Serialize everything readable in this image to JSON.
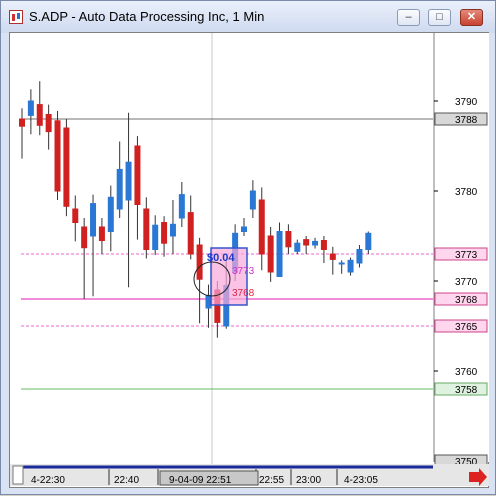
{
  "window": {
    "title": "S.ADP - Auto Data Processing Inc, 1 Min",
    "buttons": [
      "minimize-icon",
      "maximize-icon",
      "close-icon"
    ]
  },
  "colors": {
    "up_candle": "#2a78d4",
    "down_candle": "#d02020",
    "pink_line": "#ee66cc",
    "grey_line": "#707070",
    "green_line": "#66bb66",
    "price_label_bg": "#ffd6ee",
    "price_label_border": "#cc4488"
  },
  "overlay": {
    "profit_text": "$0.04",
    "entry_price": "3773",
    "target_price": "3768"
  },
  "x_axis": {
    "labels": [
      "4-22:30",
      "22:40",
      "9-04-09 22:51",
      "22:55",
      "23:00",
      "4-23:05"
    ]
  },
  "chart_data": {
    "type": "candlestick",
    "title": "S.ADP - Auto Data Processing Inc, 1 Min",
    "y_tick_labels": [
      "3790",
      "3780",
      "3770",
      "3760"
    ],
    "y_range": [
      3758,
      3794
    ],
    "price_labels": [
      {
        "value": "3788",
        "style": "grey"
      },
      {
        "value": "3773",
        "style": "pink"
      },
      {
        "value": "3768",
        "style": "pink"
      },
      {
        "value": "3765",
        "style": "pink"
      },
      {
        "value": "3758",
        "style": "green"
      },
      {
        "value": "3750",
        "style": "grey"
      }
    ],
    "horizontal_lines": [
      {
        "value": 3788,
        "style": "grey"
      },
      {
        "value": 3773,
        "style": "pink-dashed"
      },
      {
        "value": 3768,
        "style": "pink"
      },
      {
        "value": 3765,
        "style": "pink-dashed"
      },
      {
        "value": 3758,
        "style": "green"
      }
    ],
    "candles": [
      {
        "open": 3788.0,
        "close": 3787.2,
        "high": 3789.2,
        "low": 3783.6
      },
      {
        "open": 3788.4,
        "close": 3790.0,
        "high": 3791.3,
        "low": 3786.3
      },
      {
        "open": 3789.6,
        "close": 3787.3,
        "high": 3792.2,
        "low": 3786.2
      },
      {
        "open": 3788.5,
        "close": 3786.6,
        "high": 3789.6,
        "low": 3784.6
      },
      {
        "open": 3787.8,
        "close": 3780.0,
        "high": 3788.9,
        "low": 3779.0
      },
      {
        "open": 3787.0,
        "close": 3778.3,
        "high": 3788.0,
        "low": 3777.2
      },
      {
        "open": 3778.0,
        "close": 3776.5,
        "high": 3779.5,
        "low": 3774.4
      },
      {
        "open": 3776.0,
        "close": 3773.7,
        "high": 3777.0,
        "low": 3768.0
      },
      {
        "open": 3775.0,
        "close": 3778.6,
        "high": 3779.6,
        "low": 3768.3
      },
      {
        "open": 3776.0,
        "close": 3774.5,
        "high": 3777.0,
        "low": 3773.0
      },
      {
        "open": 3775.5,
        "close": 3779.3,
        "high": 3780.6,
        "low": 3773.3
      },
      {
        "open": 3778.0,
        "close": 3782.4,
        "high": 3785.5,
        "low": 3777.0
      },
      {
        "open": 3779.0,
        "close": 3783.2,
        "high": 3788.7,
        "low": 3769.3
      },
      {
        "open": 3785.0,
        "close": 3778.5,
        "high": 3786.1,
        "low": 3774.6
      },
      {
        "open": 3778.0,
        "close": 3773.5,
        "high": 3779.3,
        "low": 3772.5
      },
      {
        "open": 3773.5,
        "close": 3776.2,
        "high": 3777.3,
        "low": 3772.9
      },
      {
        "open": 3776.5,
        "close": 3774.2,
        "high": 3777.2,
        "low": 3772.7
      },
      {
        "open": 3775.0,
        "close": 3776.3,
        "high": 3779.0,
        "low": 3773.0
      },
      {
        "open": 3777.0,
        "close": 3779.6,
        "high": 3781.0,
        "low": 3776.0
      },
      {
        "open": 3777.6,
        "close": 3773.0,
        "high": 3779.5,
        "low": 3772.4
      },
      {
        "open": 3774.0,
        "close": 3770.2,
        "high": 3774.8,
        "low": 3765.3
      },
      {
        "open": 3767.0,
        "close": 3768.4,
        "high": 3769.6,
        "low": 3764.8
      },
      {
        "open": 3769.0,
        "close": 3765.4,
        "high": 3770.0,
        "low": 3763.7
      },
      {
        "open": 3765.0,
        "close": 3769.5,
        "high": 3772.3,
        "low": 3764.7
      },
      {
        "open": 3771.0,
        "close": 3775.3,
        "high": 3776.3,
        "low": 3770.0
      },
      {
        "open": 3775.5,
        "close": 3776.0,
        "high": 3777.0,
        "low": 3775.0
      },
      {
        "open": 3778.0,
        "close": 3780.0,
        "high": 3781.2,
        "low": 3777.0
      },
      {
        "open": 3779.0,
        "close": 3773.0,
        "high": 3780.4,
        "low": 3771.2
      },
      {
        "open": 3775.0,
        "close": 3771.0,
        "high": 3776.0,
        "low": 3769.9
      },
      {
        "open": 3770.5,
        "close": 3775.5,
        "high": 3776.5,
        "low": 3770.5
      },
      {
        "open": 3775.5,
        "close": 3773.8,
        "high": 3776.3,
        "low": 3773.0
      },
      {
        "open": 3773.3,
        "close": 3774.2,
        "high": 3774.6,
        "low": 3773.0
      },
      {
        "open": 3774.6,
        "close": 3774.0,
        "high": 3775.0,
        "low": 3773.0
      },
      {
        "open": 3774.0,
        "close": 3774.4,
        "high": 3774.8,
        "low": 3773.6
      },
      {
        "open": 3774.5,
        "close": 3773.5,
        "high": 3775.0,
        "low": 3772.0
      },
      {
        "open": 3773.0,
        "close": 3772.4,
        "high": 3773.8,
        "low": 3770.7
      },
      {
        "open": 3772.0,
        "close": 3772.0,
        "high": 3772.3,
        "low": 3770.8
      },
      {
        "open": 3771.0,
        "close": 3772.3,
        "high": 3772.6,
        "low": 3770.6
      },
      {
        "open": 3772.0,
        "close": 3773.5,
        "high": 3774.0,
        "low": 3771.5
      },
      {
        "open": 3773.5,
        "close": 3775.3,
        "high": 3775.5,
        "low": 3773.0
      }
    ],
    "grid": "vertical-crosshair-only"
  }
}
